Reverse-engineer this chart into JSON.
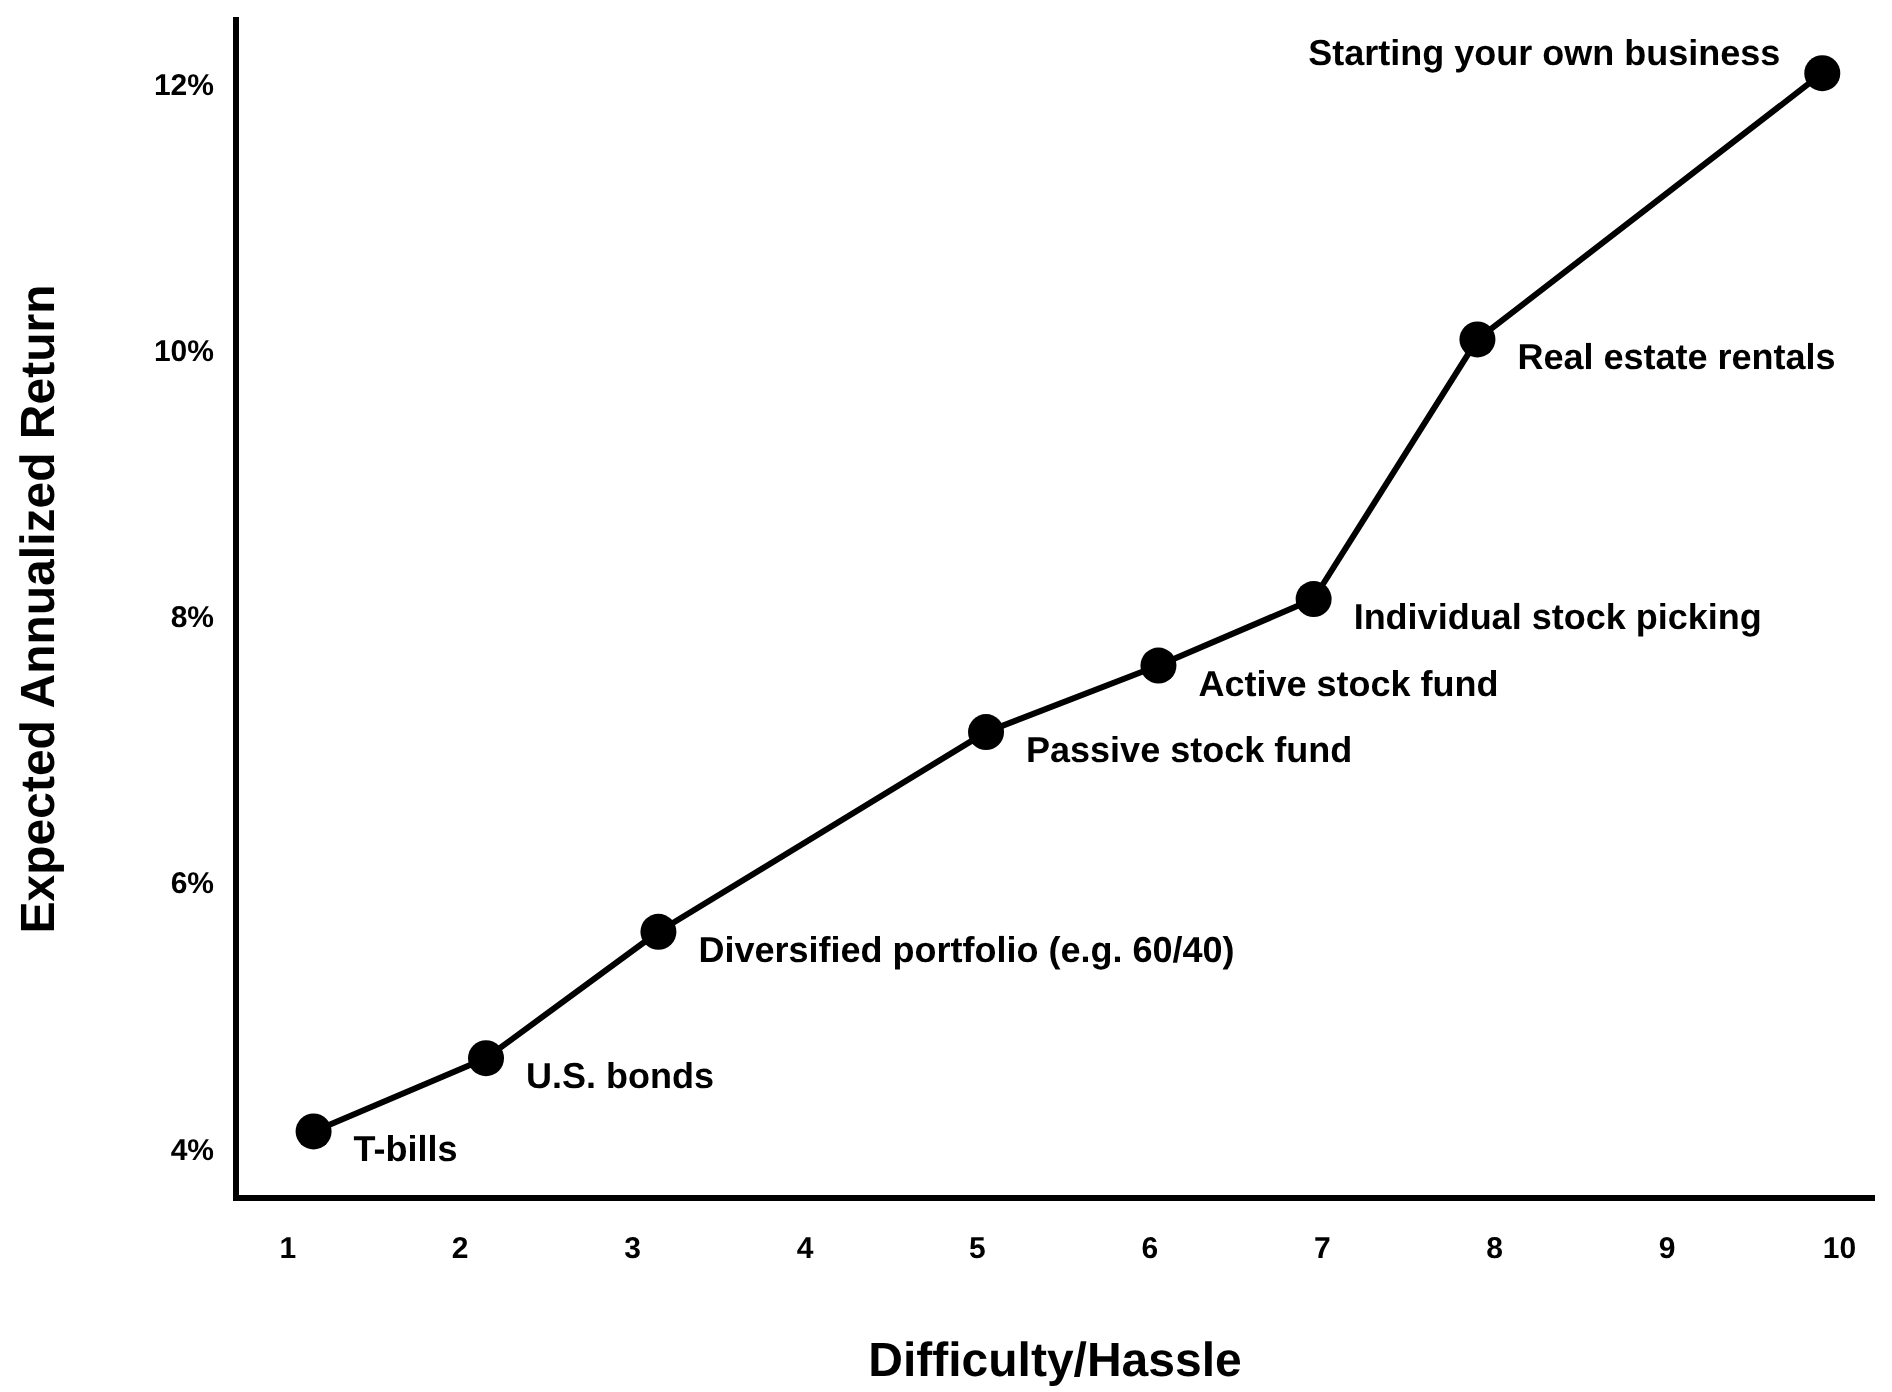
{
  "chart_data": {
    "type": "line",
    "xlabel": "Difficulty/Hassle",
    "ylabel": "Expected Annualized Return",
    "x": [
      1.15,
      2.15,
      3.15,
      5.05,
      6.05,
      6.95,
      7.9,
      9.9
    ],
    "series": [
      {
        "color": "#000000",
        "values": [
          4.15,
          4.7,
          5.65,
          7.15,
          7.65,
          8.15,
          10.1,
          12.1
        ]
      }
    ],
    "xlim": [
      0.7,
      10.2
    ],
    "xticks": [
      1,
      2,
      3,
      4,
      5,
      6,
      7,
      8,
      9,
      10
    ],
    "ylim": [
      3.65,
      12.5
    ],
    "yticks": [
      {
        "value": 4,
        "label": "4%"
      },
      {
        "value": 6,
        "label": "6%"
      },
      {
        "value": 8,
        "label": "8%"
      },
      {
        "value": 10,
        "label": "10%"
      },
      {
        "value": 12,
        "label": "12%"
      }
    ],
    "marker": "circle",
    "line_style": "solid",
    "annotations": [
      {
        "text": "T-bills",
        "x": 1.15,
        "y": 4.15
      },
      {
        "text": "U.S. bonds",
        "x": 2.15,
        "y": 4.7
      },
      {
        "text": "Diversified portfolio (e.g. 60/40)",
        "x": 3.15,
        "y": 5.65
      },
      {
        "text": "Passive stock fund",
        "x": 5.05,
        "y": 7.15
      },
      {
        "text": "Active stock fund",
        "x": 6.05,
        "y": 7.65
      },
      {
        "text": "Individual stock picking",
        "x": 6.95,
        "y": 8.15
      },
      {
        "text": "Real estate rentals",
        "x": 7.9,
        "y": 10.1
      },
      {
        "text": "Starting your own business",
        "x": 9.9,
        "y": 12.1
      }
    ]
  }
}
